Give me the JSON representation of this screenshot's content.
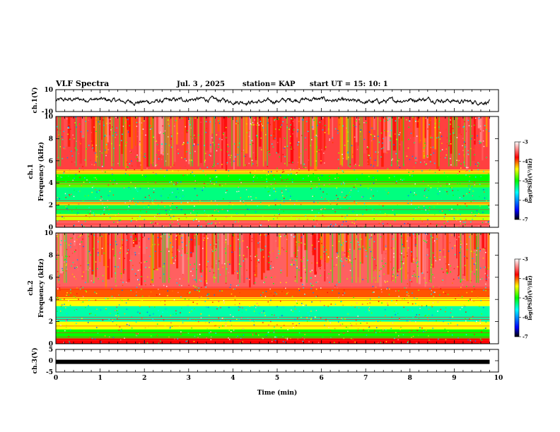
{
  "header": {
    "title": "VLF Spectra",
    "date": "Jul. 3 , 2025",
    "station": "station= KAP",
    "start": "start UT = 15: 10: 1"
  },
  "chart_data": [
    {
      "type": "line",
      "panel": "ch1-waveform",
      "ylabel": "ch.1(V)",
      "ylim": [
        -10,
        10
      ],
      "yticks": [
        "10",
        "-10"
      ],
      "xlim": [
        0,
        10
      ],
      "x_end": 9.8,
      "y_mean": 0,
      "y_range_typical": [
        -3,
        3
      ],
      "description_of_signal": null
    },
    {
      "type": "heatmap",
      "panel": "ch1-spectrogram",
      "ylabel": "ch.1 Frequency (kHz)",
      "ylim": [
        0,
        10
      ],
      "yticks": [
        "0",
        "2",
        "4",
        "6",
        "8",
        "10"
      ],
      "xlim": [
        0,
        10
      ],
      "x_end": 9.8,
      "colorbar": {
        "label": "log(PSD)(V²/Hz)",
        "ticks": [
          "-3",
          "-4",
          "-5",
          "-6",
          "-7"
        ],
        "range": [
          -7,
          -3
        ]
      },
      "bands": [
        {
          "from": 0,
          "to": 0.6,
          "level": -3.5
        },
        {
          "from": 0.6,
          "to": 1.2,
          "level": -4.5
        },
        {
          "from": 1.2,
          "to": 2.0,
          "level": -5.2
        },
        {
          "from": 2.0,
          "to": 2.3,
          "level": -4.3
        },
        {
          "from": 2.3,
          "to": 3.6,
          "level": -5.3
        },
        {
          "from": 3.6,
          "to": 4.0,
          "level": -4.8
        },
        {
          "from": 4.0,
          "to": 4.8,
          "level": -5.0
        },
        {
          "from": 4.8,
          "to": 5.2,
          "level": -4.4
        },
        {
          "from": 5.2,
          "to": 10.0,
          "level": -3.6
        }
      ]
    },
    {
      "type": "heatmap",
      "panel": "ch2-spectrogram",
      "ylabel": "ch.2 Frequency (kHz)",
      "ylim": [
        0,
        10
      ],
      "yticks": [
        "0",
        "2",
        "4",
        "6",
        "8",
        "10"
      ],
      "xlim": [
        0,
        10
      ],
      "x_end": 9.8,
      "colorbar": {
        "label": "log(PSD)(V²/Hz)",
        "ticks": [
          "-3",
          "-4",
          "-5",
          "-6",
          "-7"
        ],
        "range": [
          -7,
          -3
        ]
      },
      "bands": [
        {
          "from": 0,
          "to": 0.5,
          "level": -3.8
        },
        {
          "from": 0.5,
          "to": 1.3,
          "level": -5.0
        },
        {
          "from": 1.3,
          "to": 2.0,
          "level": -4.4
        },
        {
          "from": 2.0,
          "to": 3.4,
          "level": -5.4
        },
        {
          "from": 3.4,
          "to": 4.2,
          "level": -4.4
        },
        {
          "from": 4.2,
          "to": 5.0,
          "level": -4.0
        },
        {
          "from": 5.0,
          "to": 10.0,
          "level": -3.5
        }
      ]
    },
    {
      "type": "line",
      "panel": "ch3-waveform",
      "ylabel": "ch.3(V)",
      "ylim": [
        -5,
        5
      ],
      "yticks": [
        "5",
        "0",
        "-5"
      ],
      "xlim": [
        0,
        10
      ],
      "x_end": 9.8,
      "y_value": -0.5,
      "xlabel": "Time (min)",
      "xticks": [
        "0",
        "1",
        "2",
        "3",
        "4",
        "5",
        "6",
        "7",
        "8",
        "9",
        "10"
      ]
    }
  ],
  "colors": {
    "scale": [
      "#000000",
      "#0000ff",
      "#00ffff",
      "#00ff00",
      "#ffff00",
      "#ff0000",
      "#ffffff"
    ],
    "line": "#000000"
  }
}
